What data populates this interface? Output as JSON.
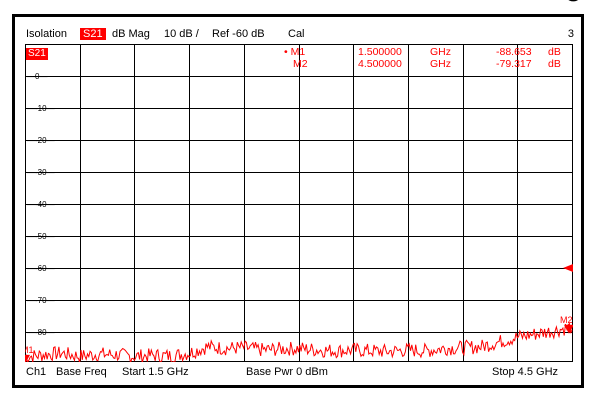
{
  "top_glyph": "⌣",
  "header": {
    "measurement": "Isolation",
    "trace": "S21",
    "format": "dB Mag",
    "scale": "10 dB /",
    "reference": "Ref -60 dB",
    "cal": "Cal",
    "channel_number": "3"
  },
  "trace_label": "S21",
  "markers": [
    {
      "bullet": "•",
      "name": "M1",
      "frequency": "1.500000",
      "unit": "GHz",
      "value": "-88.653",
      "value_unit": "dB"
    },
    {
      "bullet": "",
      "name": "M2",
      "frequency": "4.500000",
      "unit": "GHz",
      "value": "-79.317",
      "value_unit": "dB"
    }
  ],
  "footer": {
    "channel": "Ch1",
    "sweep_type": "Base Freq",
    "start": "Start  1.5 GHz",
    "power": "Base Pwr   0 dBm",
    "stop": "Stop  4.5 GHz"
  },
  "colors": {
    "trace": "#ff0000",
    "grid": "#000000"
  },
  "chart_data": {
    "type": "line",
    "ytick_labels": [
      "0",
      "-10",
      "-20",
      "-30",
      "-40",
      "-50",
      "-60",
      "-70",
      "-80"
    ],
    "ylim": [
      -90,
      0
    ],
    "xlim": [
      1.5,
      4.5
    ],
    "reference_level": -60,
    "marker_labels": [
      "M1",
      "M2"
    ],
    "series": [
      {
        "x": [
          1.5,
          1.6,
          1.7,
          1.8,
          1.9,
          2.0,
          2.1,
          2.2,
          2.3,
          2.4,
          2.5,
          2.6,
          2.7,
          2.8,
          2.9,
          3.0,
          3.1,
          3.2,
          3.3,
          3.4,
          3.5,
          3.6,
          3.7,
          3.8,
          3.9,
          4.0,
          4.1,
          4.2,
          4.3,
          4.4,
          4.5
        ],
        "values": [
          -88.7,
          -88,
          -87.5,
          -88.5,
          -87.8,
          -88,
          -88.5,
          -88.2,
          -88.4,
          -87.5,
          -85.5,
          -86,
          -85.8,
          -86.5,
          -86.2,
          -86,
          -86.5,
          -86.8,
          -86.5,
          -86.8,
          -87,
          -86.5,
          -86.8,
          -86,
          -85.8,
          -85.5,
          -84,
          -82.5,
          -81.5,
          -80.5,
          -79.3
        ]
      }
    ]
  }
}
